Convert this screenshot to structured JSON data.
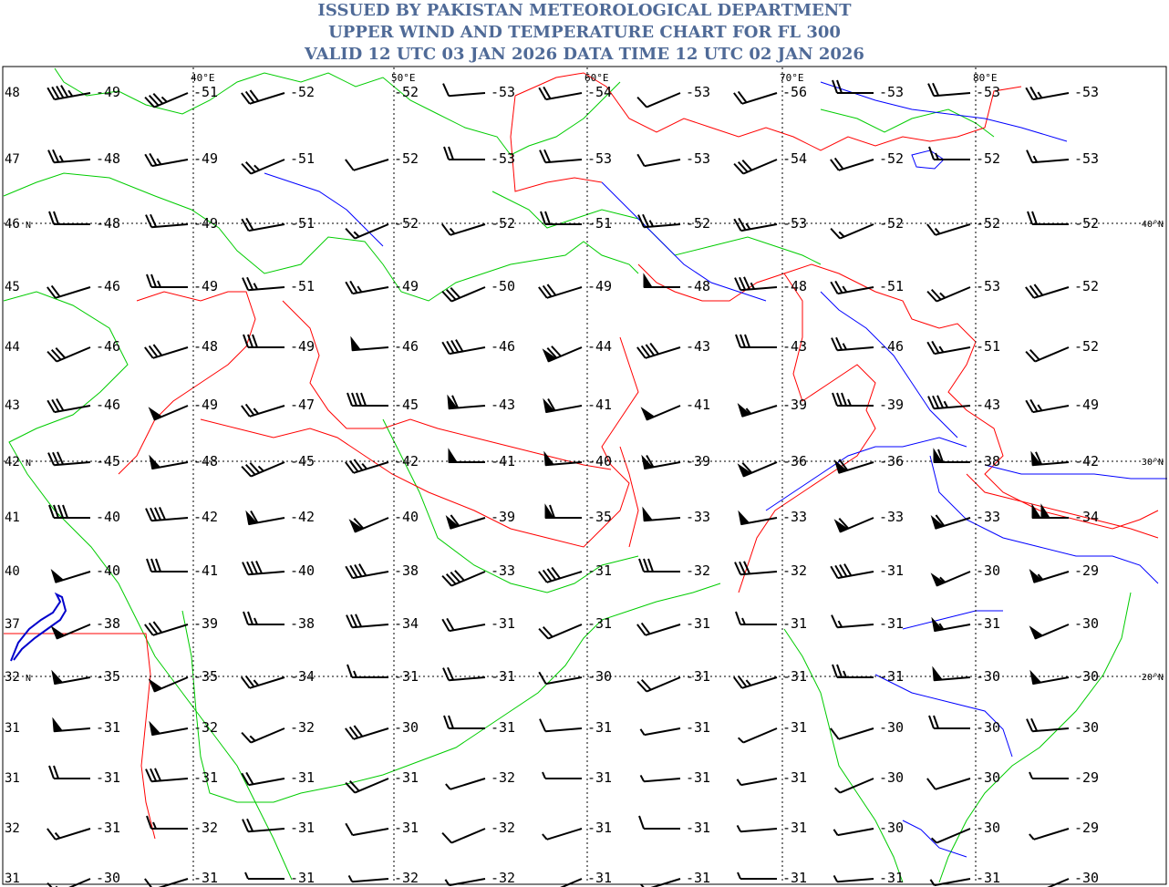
{
  "header": {
    "line1": "ISSUED BY PAKISTAN METEOROLOGICAL DEPARTMENT",
    "line2": "UPPER WIND AND TEMPERATURE CHART FOR FL 300",
    "line3": "VALID 12 UTC 03 JAN 2026 DATA TIME 12 UTC 02 JAN 2026",
    "color": "#4f6a97"
  },
  "map": {
    "colors": {
      "frame": "#000000",
      "grid": "#000000",
      "country_border": "#ff0000",
      "coastline": "#00cc00",
      "rivers": "#0000ff",
      "temperature": "#000000",
      "barb": "#000000"
    },
    "lon_labels": [
      "40°E",
      "50°E",
      "60°E",
      "70°E",
      "80°E"
    ],
    "lat_labels": [
      "40°N",
      "30°N",
      "20°N"
    ],
    "row_labels": [
      "48",
      "47",
      "46",
      "45",
      "44",
      "43",
      "42",
      "41",
      "40",
      "37",
      "32",
      "31",
      "31",
      "32",
      "31"
    ],
    "row_label_n_rows": [
      2,
      6,
      10
    ],
    "temperatures": [
      [
        "-49",
        "-51",
        "-52",
        "-52",
        "-53",
        "-54",
        "-53",
        "-56",
        "-53",
        "-53",
        "-53"
      ],
      [
        "-48",
        "-49",
        "-51",
        "-52",
        "-53",
        "-53",
        "-53",
        "-54",
        "-52",
        "-52",
        "-53"
      ],
      [
        "-48",
        "-49",
        "-51",
        "-52",
        "-52",
        "-51",
        "-52",
        "-53",
        "-52",
        "-52",
        "-52"
      ],
      [
        "-46",
        "-49",
        "-51",
        "-49",
        "-50",
        "-49",
        "-48",
        "-48",
        "-51",
        "-53",
        "-52"
      ],
      [
        "-46",
        "-48",
        "-49",
        "-46",
        "-46",
        "-44",
        "-43",
        "-43",
        "-46",
        "-51",
        "-52"
      ],
      [
        "-46",
        "-49",
        "-47",
        "-45",
        "-43",
        "-41",
        "-41",
        "-39",
        "-39",
        "-43",
        "-49"
      ],
      [
        "-45",
        "-48",
        "-45",
        "-42",
        "-41",
        "-40",
        "-39",
        "-36",
        "-36",
        "-38",
        "-42"
      ],
      [
        "-40",
        "-42",
        "-42",
        "-40",
        "-39",
        "-35",
        "-33",
        "-33",
        "-33",
        "-33",
        "-34"
      ],
      [
        "-40",
        "-41",
        "-40",
        "-38",
        "-33",
        "-31",
        "-32",
        "-32",
        "-31",
        "-30",
        "-29"
      ],
      [
        "-38",
        "-39",
        "-38",
        "-34",
        "-31",
        "-31",
        "-31",
        "-31",
        "-31",
        "-31",
        "-30"
      ],
      [
        "-35",
        "-35",
        "-34",
        "-31",
        "-31",
        "-30",
        "-31",
        "-31",
        "-31",
        "-30",
        "-30"
      ],
      [
        "-31",
        "-32",
        "-32",
        "-30",
        "-31",
        "-31",
        "-31",
        "-31",
        "-30",
        "-30",
        "-30"
      ],
      [
        "-31",
        "-31",
        "-31",
        "-31",
        "-32",
        "-31",
        "-31",
        "-31",
        "-30",
        "-30",
        "-29"
      ],
      [
        "-31",
        "-32",
        "-31",
        "-31",
        "-32",
        "-31",
        "-31",
        "-31",
        "-30",
        "-30",
        "-29"
      ],
      [
        "-30",
        "-31",
        "-31",
        "-32",
        "-32",
        "-31",
        "-31",
        "-31",
        "-31",
        "-31",
        "-30"
      ]
    ],
    "wind_speeds_kt": [
      [
        45,
        35,
        30,
        0,
        10,
        20,
        10,
        20,
        20,
        20,
        25
      ],
      [
        25,
        25,
        25,
        10,
        20,
        20,
        10,
        30,
        20,
        15,
        15
      ],
      [
        20,
        20,
        20,
        15,
        15,
        20,
        25,
        25,
        15,
        15,
        20
      ],
      [
        20,
        25,
        25,
        25,
        30,
        30,
        50,
        35,
        25,
        25,
        30
      ],
      [
        30,
        30,
        30,
        50,
        40,
        70,
        40,
        30,
        25,
        25,
        20
      ],
      [
        30,
        50,
        25,
        40,
        60,
        60,
        50,
        55,
        35,
        35,
        25
      ],
      [
        30,
        50,
        35,
        35,
        50,
        50,
        60,
        60,
        60,
        60,
        60
      ],
      [
        40,
        40,
        60,
        60,
        60,
        60,
        50,
        50,
        60,
        60,
        100
      ],
      [
        50,
        30,
        40,
        40,
        40,
        40,
        30,
        30,
        40,
        55,
        55
      ],
      [
        50,
        30,
        25,
        30,
        20,
        20,
        20,
        15,
        15,
        55,
        50
      ],
      [
        50,
        50,
        25,
        15,
        20,
        10,
        20,
        25,
        25,
        50,
        50
      ],
      [
        50,
        50,
        15,
        30,
        20,
        10,
        5,
        5,
        10,
        20,
        20
      ],
      [
        20,
        30,
        20,
        20,
        5,
        5,
        5,
        5,
        5,
        10,
        5
      ],
      [
        15,
        15,
        20,
        10,
        10,
        5,
        10,
        5,
        5,
        5,
        5
      ],
      [
        15,
        10,
        5,
        5,
        5,
        5,
        5,
        5,
        5,
        5,
        5
      ]
    ]
  }
}
